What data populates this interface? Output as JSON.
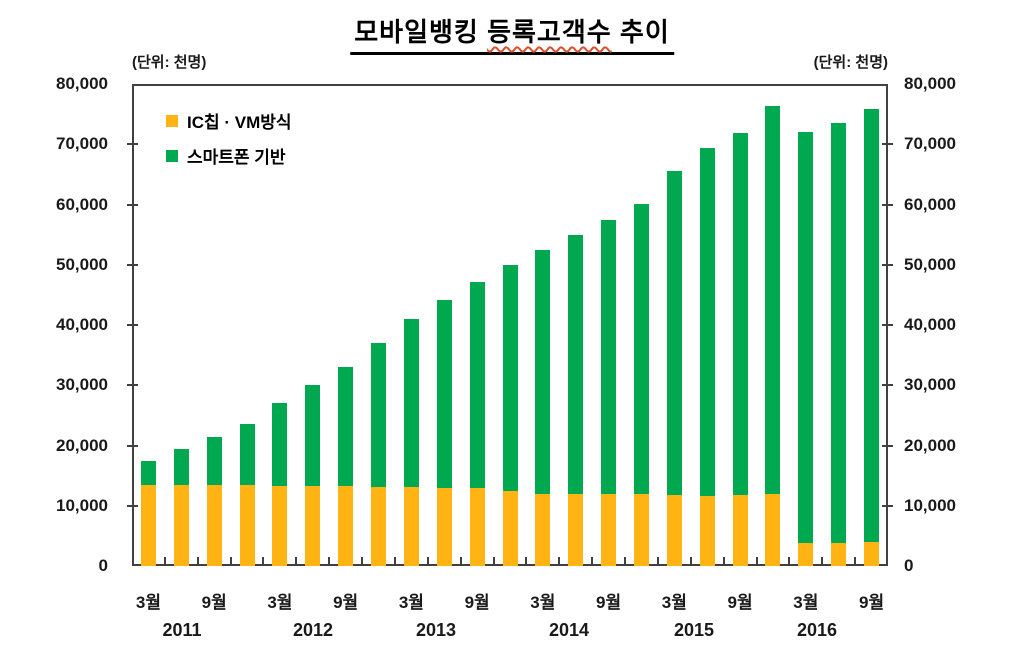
{
  "title": {
    "text": "모바일뱅킹 등록고객수 추이",
    "part1": "모바일뱅킹 ",
    "part2": "등록고객수",
    "part3": " 추이"
  },
  "axes": {
    "unit_left": "(단위: 천명)",
    "unit_right": "(단위: 천명)"
  },
  "legend": {
    "items": [
      {
        "label": "IC칩 · VM방식",
        "color": "#FFB414"
      },
      {
        "label": "스마트폰 기반",
        "color": "#00A84F"
      }
    ]
  },
  "colors": {
    "ic_vm": "#FFB414",
    "smartphone": "#00A84F",
    "axis": "#404040",
    "text": "#1a1a1a"
  },
  "chart_data": {
    "type": "bar",
    "stacked": true,
    "title": "모바일뱅킹 등록고객수 추이",
    "unit": "천명",
    "ylim": [
      0,
      80000
    ],
    "grid": false,
    "legend_position": "top-left-inside",
    "x": [
      "2011-03",
      "2011-06",
      "2011-09",
      "2011-12",
      "2012-03",
      "2012-06",
      "2012-09",
      "2012-12",
      "2013-03",
      "2013-06",
      "2013-09",
      "2013-12",
      "2014-03",
      "2014-06",
      "2014-09",
      "2014-12",
      "2015-03",
      "2015-06",
      "2015-09",
      "2015-12",
      "2016-03",
      "2016-06",
      "2016-09"
    ],
    "series": [
      {
        "name": "IC칩 · VM방식",
        "color": "#FFB414",
        "values": [
          13500,
          13500,
          13400,
          13400,
          13300,
          13200,
          13200,
          13100,
          13100,
          13000,
          12900,
          12500,
          12000,
          12000,
          11900,
          11900,
          11800,
          11600,
          11800,
          11900,
          3900,
          3900,
          4000
        ]
      },
      {
        "name": "스마트폰 기반",
        "color": "#00A84F",
        "values": [
          3900,
          6000,
          8000,
          10200,
          13700,
          16800,
          19800,
          23900,
          27900,
          31100,
          34200,
          37400,
          40500,
          43000,
          45600,
          48200,
          53800,
          57700,
          60000,
          64500,
          68100,
          69600,
          71800
        ]
      }
    ],
    "totals": [
      17400,
      19500,
      21400,
      23600,
      27000,
      30000,
      33000,
      37000,
      41000,
      44100,
      47100,
      49900,
      52500,
      55000,
      57500,
      60100,
      65600,
      69300,
      71800,
      76400,
      72000,
      73500,
      75800
    ],
    "y_tick_labels": [
      "0",
      "10,000",
      "20,000",
      "30,000",
      "40,000",
      "50,000",
      "60,000",
      "70,000",
      "80,000"
    ],
    "x_month_labels": [
      "3월",
      "",
      "9월",
      "",
      "3월",
      "",
      "9월",
      "",
      "3월",
      "",
      "9월",
      "",
      "3월",
      "",
      "9월",
      "",
      "3월",
      "",
      "9월",
      "",
      "3월",
      "",
      "9월"
    ],
    "year_labels": [
      "2011",
      "2012",
      "2013",
      "2014",
      "2015",
      "2016"
    ]
  }
}
